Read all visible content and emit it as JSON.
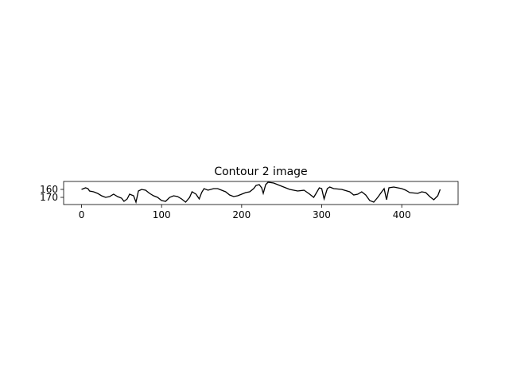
{
  "chart_data": {
    "type": "line",
    "title": "Contour 2 image",
    "x": [
      0,
      5,
      8,
      10,
      15,
      20,
      25,
      30,
      35,
      40,
      45,
      50,
      53,
      57,
      60,
      65,
      68,
      71,
      75,
      80,
      85,
      90,
      95,
      100,
      105,
      110,
      115,
      120,
      125,
      130,
      135,
      138,
      143,
      147,
      150,
      153,
      158,
      165,
      170,
      175,
      180,
      185,
      190,
      195,
      200,
      205,
      210,
      215,
      218,
      222,
      225,
      227,
      230,
      233,
      240,
      250,
      260,
      270,
      278,
      285,
      290,
      293,
      297,
      300,
      303,
      307,
      310,
      315,
      325,
      335,
      340,
      345,
      350,
      355,
      360,
      365,
      370,
      375,
      378,
      381,
      384,
      390,
      400,
      405,
      410,
      420,
      425,
      430,
      435,
      440,
      445,
      448
    ],
    "series": [
      {
        "color": "#000000",
        "values": [
          160,
          158,
          159,
          162,
          163,
          165,
          168,
          170,
          169,
          166,
          169,
          171,
          175,
          172,
          166,
          168,
          176,
          162,
          160,
          161,
          165,
          168,
          170,
          174,
          175,
          170,
          168,
          169,
          172,
          176,
          170,
          163,
          166,
          172,
          164,
          159,
          161,
          159,
          159,
          161,
          163,
          167,
          169,
          168,
          166,
          164,
          163,
          159,
          155,
          154,
          158,
          165,
          154,
          151,
          152,
          156,
          160,
          162,
          161,
          166,
          170,
          165,
          158,
          159,
          172,
          159,
          157,
          159,
          160,
          163,
          167,
          166,
          163,
          167,
          174,
          176,
          170,
          163,
          159,
          173,
          158,
          157,
          159,
          161,
          164,
          165,
          163,
          164,
          169,
          173,
          168,
          160
        ]
      }
    ],
    "xlim": [
      -22.4,
      470.4
    ],
    "ylim": [
      179,
      150
    ],
    "xticks": [
      0,
      100,
      200,
      300,
      400
    ],
    "yticks": [
      160,
      170
    ]
  }
}
